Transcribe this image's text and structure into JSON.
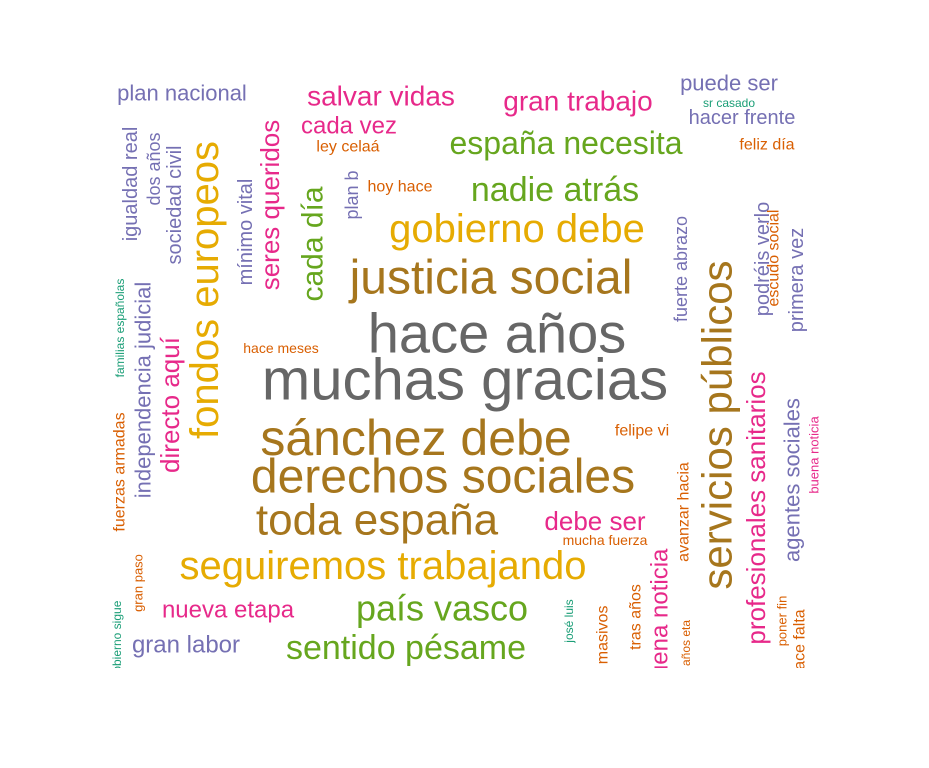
{
  "chart_data": {
    "type": "wordcloud",
    "title": "",
    "palette": [
      "#1b9e77",
      "#d95f02",
      "#7570b3",
      "#e7298a",
      "#66a61e",
      "#e6ab02",
      "#a6761d",
      "#666666"
    ],
    "words": [
      {
        "text": "muchas gracias",
        "color": "#666666"
      },
      {
        "text": "hace años",
        "color": "#666666"
      },
      {
        "text": "sánchez debe",
        "color": "#a6761d"
      },
      {
        "text": "justicia social",
        "color": "#a6761d"
      },
      {
        "text": "derechos sociales",
        "color": "#a6761d"
      },
      {
        "text": "servicios públicos",
        "color": "#a6761d"
      },
      {
        "text": "toda españa",
        "color": "#a6761d"
      },
      {
        "text": "seguiremos trabajando",
        "color": "#e6ab02"
      },
      {
        "text": "fondos europeos",
        "color": "#e6ab02"
      },
      {
        "text": "gobierno debe",
        "color": "#e6ab02"
      },
      {
        "text": "país vasco",
        "color": "#66a61e"
      },
      {
        "text": "nadie atrás",
        "color": "#66a61e"
      },
      {
        "text": "sentido pésame",
        "color": "#66a61e"
      },
      {
        "text": "españa necesita",
        "color": "#66a61e"
      },
      {
        "text": "cada día",
        "color": "#66a61e"
      },
      {
        "text": "profesionales sanitarios",
        "color": "#e7298a"
      },
      {
        "text": "salvar vidas",
        "color": "#e7298a"
      },
      {
        "text": "gran trabajo",
        "color": "#e7298a"
      },
      {
        "text": "seres queridos",
        "color": "#e7298a"
      },
      {
        "text": "directo aquí",
        "color": "#e7298a"
      },
      {
        "text": "debe ser",
        "color": "#e7298a"
      },
      {
        "text": "nueva etapa",
        "color": "#e7298a"
      },
      {
        "text": "cada vez",
        "color": "#e7298a"
      },
      {
        "text": "buena noticia",
        "color": "#e7298a"
      },
      {
        "text": "agentes sociales",
        "color": "#7570b3"
      },
      {
        "text": "independencia judicial",
        "color": "#7570b3"
      },
      {
        "text": "gran labor",
        "color": "#7570b3"
      },
      {
        "text": "plan nacional",
        "color": "#7570b3"
      },
      {
        "text": "puede ser",
        "color": "#7570b3"
      },
      {
        "text": "hacer frente",
        "color": "#7570b3"
      },
      {
        "text": "podréis verlo",
        "color": "#7570b3"
      },
      {
        "text": "primera vez",
        "color": "#7570b3"
      },
      {
        "text": "fuerte abrazo",
        "color": "#7570b3"
      },
      {
        "text": "mínimo vital",
        "color": "#7570b3"
      },
      {
        "text": "sociedad civil",
        "color": "#7570b3"
      },
      {
        "text": "igualdad real",
        "color": "#7570b3"
      },
      {
        "text": "dos años",
        "color": "#7570b3"
      },
      {
        "text": "plan b",
        "color": "#7570b3"
      },
      {
        "text": "fuerzas armadas",
        "color": "#d95f02"
      },
      {
        "text": "felipe vi",
        "color": "#d95f02"
      },
      {
        "text": "avanzar hacia",
        "color": "#d95f02"
      },
      {
        "text": "escudo social",
        "color": "#d95f02"
      },
      {
        "text": "feliz día",
        "color": "#d95f02"
      },
      {
        "text": "hoy hace",
        "color": "#d95f02"
      },
      {
        "text": "ley celaá",
        "color": "#d95f02"
      },
      {
        "text": "hace meses",
        "color": "#d95f02"
      },
      {
        "text": "mucha fuerza",
        "color": "#d95f02"
      },
      {
        "text": "tras años",
        "color": "#d95f02"
      },
      {
        "text": "test masivos",
        "color": "#d95f02"
      },
      {
        "text": "gran paso",
        "color": "#d95f02"
      },
      {
        "text": "poner fin",
        "color": "#d95f02"
      },
      {
        "text": "hace falta",
        "color": "#d95f02"
      },
      {
        "text": "años eta",
        "color": "#d95f02"
      },
      {
        "text": "sr casado",
        "color": "#1b9e77"
      },
      {
        "text": "familias españolas",
        "color": "#1b9e77"
      },
      {
        "text": "josé luis",
        "color": "#1b9e77"
      },
      {
        "text": "gobierno sigue",
        "color": "#1b9e77"
      },
      {
        "text": "buena noticia",
        "color": "#e7298a"
      }
    ]
  }
}
